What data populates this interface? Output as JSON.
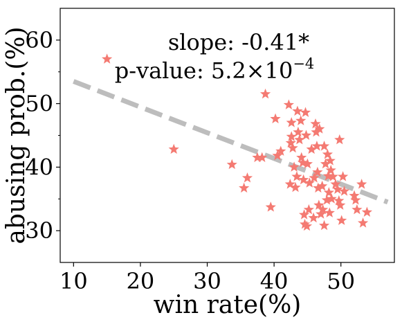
{
  "chart_data": {
    "type": "scatter",
    "title": "",
    "xlabel": "win rate(%)",
    "ylabel": "abusing prob.(%)",
    "xlim": [
      8,
      58
    ],
    "ylim": [
      25,
      65
    ],
    "xticks": [
      10,
      20,
      30,
      40,
      50
    ],
    "yticks": [
      30,
      40,
      50,
      60
    ],
    "grid": false,
    "legend": "none",
    "colors": {
      "points": "#f47a72",
      "trend": "#bdbdbd",
      "axes": "#000000"
    },
    "marker": "star",
    "annotations": {
      "slope": "slope: -0.41*",
      "pvalue_prefix": "p-value: 5.2×10",
      "pvalue_exponent": "−4"
    },
    "trendline": {
      "x": [
        10,
        57
      ],
      "y": [
        53.5,
        34.5
      ]
    },
    "series": [
      {
        "points": [
          [
            15,
            57
          ],
          [
            25,
            42.8
          ],
          [
            33.7,
            40.4
          ],
          [
            35.5,
            36.7
          ],
          [
            36,
            38.3
          ],
          [
            37.5,
            41.5
          ],
          [
            38.2,
            41.5
          ],
          [
            38.7,
            51.5
          ],
          [
            39.5,
            33.7
          ],
          [
            40.2,
            47.6
          ],
          [
            40.5,
            41.8
          ],
          [
            41,
            42.5
          ],
          [
            42.2,
            49.8
          ],
          [
            42.4,
            37.3
          ],
          [
            42.5,
            43.8
          ],
          [
            42.6,
            47
          ],
          [
            42.6,
            44.8
          ],
          [
            42.8,
            43
          ],
          [
            43,
            40
          ],
          [
            43.2,
            36.8
          ],
          [
            43.4,
            38.5
          ],
          [
            43.5,
            48.8
          ],
          [
            43.6,
            45.5
          ],
          [
            43.8,
            44.3
          ],
          [
            44,
            47.3
          ],
          [
            44.1,
            41.5
          ],
          [
            44.3,
            40.7
          ],
          [
            44.4,
            38
          ],
          [
            44.5,
            32.5
          ],
          [
            44.6,
            31
          ],
          [
            44.7,
            48.6
          ],
          [
            44.8,
            45
          ],
          [
            44.9,
            30.7
          ],
          [
            45,
            40.5
          ],
          [
            45.2,
            33.3
          ],
          [
            45.3,
            37.5
          ],
          [
            45.6,
            42.8
          ],
          [
            45.9,
            32
          ],
          [
            46,
            38.3
          ],
          [
            46.2,
            46.8
          ],
          [
            46.3,
            45.5
          ],
          [
            46.4,
            43.3
          ],
          [
            46.5,
            39.2
          ],
          [
            46.6,
            36.7
          ],
          [
            46.7,
            34
          ],
          [
            46.8,
            46
          ],
          [
            47,
            32.6
          ],
          [
            47.2,
            37
          ],
          [
            47.3,
            33.3
          ],
          [
            47.5,
            43.3
          ],
          [
            47.5,
            30.8
          ],
          [
            47.7,
            40.5
          ],
          [
            47.9,
            34.8
          ],
          [
            48,
            42
          ],
          [
            48.1,
            38.6
          ],
          [
            48.2,
            36
          ],
          [
            48.3,
            32.8
          ],
          [
            48.4,
            41
          ],
          [
            48.5,
            39.5
          ],
          [
            48.6,
            35
          ],
          [
            48.8,
            38.5
          ],
          [
            49.2,
            37.3
          ],
          [
            49.5,
            36.5
          ],
          [
            49.7,
            34.7
          ],
          [
            49.8,
            44.3
          ],
          [
            49.9,
            34
          ],
          [
            50.1,
            31.6
          ],
          [
            50.3,
            38.5
          ],
          [
            50.5,
            36.2
          ],
          [
            52,
            35.5
          ],
          [
            52.2,
            34.8
          ],
          [
            52.4,
            33.3
          ],
          [
            53.1,
            37.3
          ],
          [
            53.3,
            31.2
          ],
          [
            53.9,
            32.9
          ]
        ]
      }
    ]
  }
}
